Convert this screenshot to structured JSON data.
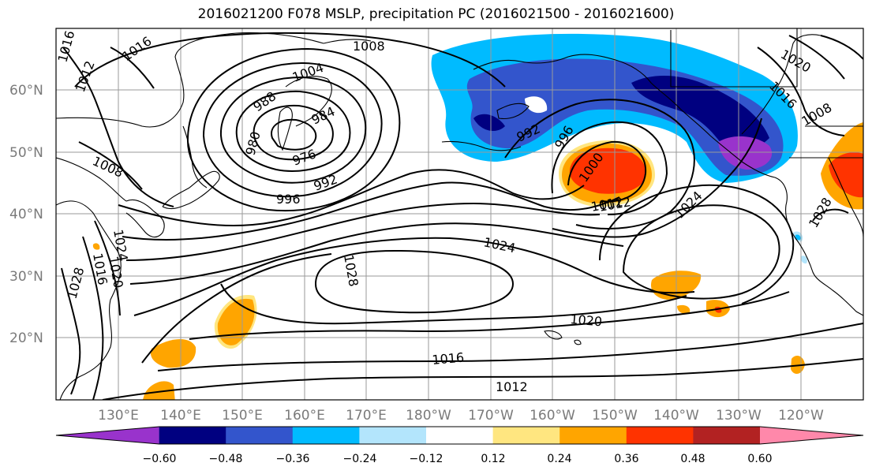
{
  "title": "2016021200 F078 MSLP, precipitation PC (2016021500 - 2016021600)",
  "lat_labels": [
    "60°N",
    "50°N",
    "40°N",
    "30°N",
    "20°N"
  ],
  "lon_labels": [
    "130°E",
    "140°E",
    "150°E",
    "160°E",
    "170°E",
    "180°W",
    "170°W",
    "160°W",
    "150°W",
    "140°W",
    "130°W",
    "120°W"
  ],
  "colorbar": {
    "tick_labels": [
      "−0.60",
      "−0.48",
      "−0.36",
      "−0.24",
      "−0.12",
      "0.12",
      "0.24",
      "0.36",
      "0.48",
      "0.60"
    ],
    "colors": [
      "#9933cc",
      "#000080",
      "#3355cc",
      "#00bbff",
      "#b3e5fc",
      "#ffffff",
      "#ffe680",
      "#ffa500",
      "#ff3300",
      "#b22222",
      "#ff88aa"
    ]
  },
  "isobar_labels": [
    "1016",
    "1016",
    "1012",
    "1008",
    "1004",
    "988",
    "984",
    "980",
    "976",
    "992",
    "996",
    "1008",
    "1012",
    "1016",
    "1020",
    "1024",
    "1028",
    "992",
    "996",
    "1000",
    "1012",
    "1024",
    "1028",
    "1024",
    "1020",
    "1016",
    "1012",
    "1028",
    "1020",
    "1016",
    "1008"
  ]
}
